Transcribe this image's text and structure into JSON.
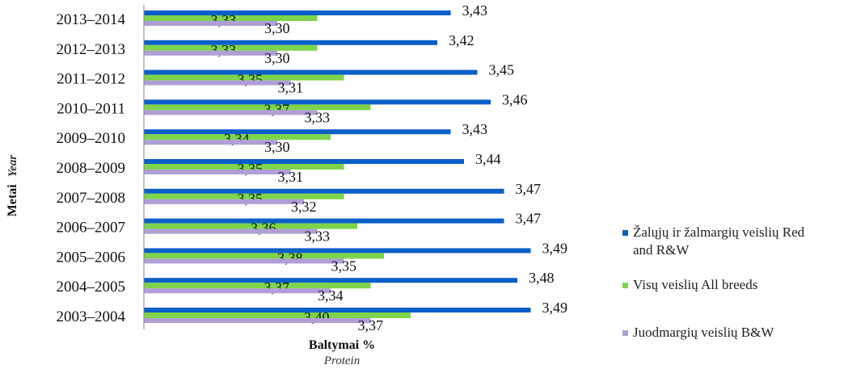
{
  "chart_data": {
    "type": "bar",
    "orientation": "horizontal",
    "categories": [
      "2013–2014",
      "2012–2013",
      "2011–2012",
      "2010–2011",
      "2009–2010",
      "2008–2009",
      "2007–2008",
      "2006–2007",
      "2005–2006",
      "2004–2005",
      "2003–2004"
    ],
    "series": [
      {
        "name": "Žalųjų ir žalmargių veislių Red and R&W",
        "color": "#0a5fc8",
        "values": [
          3.43,
          3.42,
          3.45,
          3.46,
          3.43,
          3.44,
          3.47,
          3.47,
          3.49,
          3.48,
          3.49
        ],
        "labels": [
          "3,43",
          "3,42",
          "3,45",
          "3,46",
          "3,43",
          "3,44",
          "3,47",
          "3,47",
          "3,49",
          "3,48",
          "3,49"
        ]
      },
      {
        "name": "Visų veislių All breeds",
        "color": "#7ed44a",
        "values": [
          3.33,
          3.33,
          3.35,
          3.37,
          3.34,
          3.35,
          3.35,
          3.36,
          3.38,
          3.37,
          3.4
        ],
        "labels": [
          "3,33",
          "3,33",
          "3,35",
          "3,37",
          "3,34",
          "3,35",
          "3,35",
          "3,36",
          "3,38",
          "3,37",
          "3,40"
        ]
      },
      {
        "name": "Juodmargių veislių B&W",
        "color": "#b09fd6",
        "values": [
          3.3,
          3.3,
          3.31,
          3.33,
          3.3,
          3.31,
          3.32,
          3.33,
          3.35,
          3.34,
          3.37
        ],
        "labels": [
          "3,30",
          "3,30",
          "3,31",
          "3,33",
          "3,30",
          "3,31",
          "3,32",
          "3,33",
          "3,35",
          "3,34",
          "3,37"
        ]
      }
    ],
    "xlabel": "Baltymai %",
    "xlabel_sub": "Protein",
    "ylabel": "Metai",
    "ylabel_sub": "Year",
    "xlim": [
      3.2,
      3.5
    ],
    "grid": false,
    "legend_position": "right"
  }
}
